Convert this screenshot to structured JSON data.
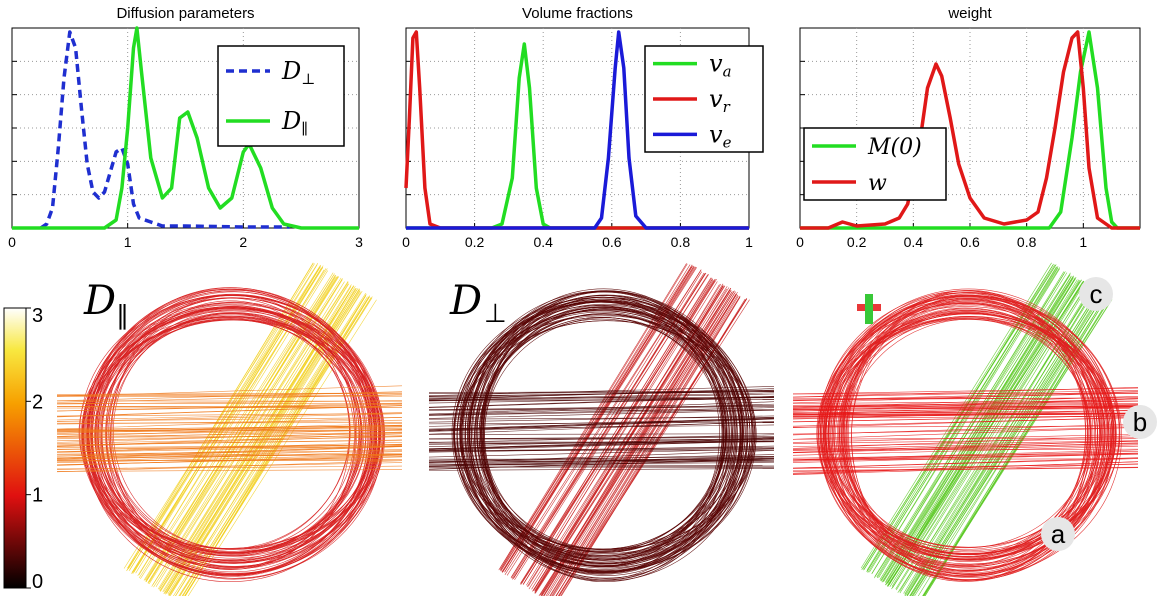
{
  "chart_data": [
    {
      "type": "line",
      "title": "Diffusion parameters",
      "xlim": [
        0,
        3
      ],
      "xticks": [
        0,
        1,
        2,
        3
      ],
      "ylim": [
        0,
        1
      ],
      "grid": true,
      "legend_placement": "top-right",
      "series": [
        {
          "name": "D",
          "name_sub": "⊥",
          "color": "#1f2fd0",
          "dash": true,
          "points": [
            [
              0.25,
              0
            ],
            [
              0.3,
              0.02
            ],
            [
              0.35,
              0.1
            ],
            [
              0.4,
              0.4
            ],
            [
              0.45,
              0.75
            ],
            [
              0.5,
              0.98
            ],
            [
              0.55,
              0.9
            ],
            [
              0.6,
              0.6
            ],
            [
              0.65,
              0.32
            ],
            [
              0.7,
              0.18
            ],
            [
              0.75,
              0.15
            ],
            [
              0.8,
              0.18
            ],
            [
              0.85,
              0.28
            ],
            [
              0.9,
              0.38
            ],
            [
              0.95,
              0.4
            ],
            [
              1.0,
              0.32
            ],
            [
              1.05,
              0.12
            ],
            [
              1.1,
              0.05
            ],
            [
              1.2,
              0.03
            ],
            [
              1.3,
              0.01
            ],
            [
              1.5,
              0.01
            ],
            [
              2.0,
              0.005
            ],
            [
              2.4,
              0.005
            ]
          ]
        },
        {
          "name": "D",
          "name_sub": "∥",
          "color": "#22dd22",
          "dash": false,
          "points": [
            [
              0,
              0
            ],
            [
              0.8,
              0
            ],
            [
              0.9,
              0.04
            ],
            [
              0.95,
              0.2
            ],
            [
              1.0,
              0.5
            ],
            [
              1.05,
              0.9
            ],
            [
              1.08,
              1.0
            ],
            [
              1.12,
              0.78
            ],
            [
              1.2,
              0.35
            ],
            [
              1.3,
              0.15
            ],
            [
              1.38,
              0.2
            ],
            [
              1.45,
              0.55
            ],
            [
              1.52,
              0.58
            ],
            [
              1.6,
              0.45
            ],
            [
              1.7,
              0.2
            ],
            [
              1.8,
              0.1
            ],
            [
              1.9,
              0.15
            ],
            [
              2.0,
              0.38
            ],
            [
              2.05,
              0.42
            ],
            [
              2.15,
              0.3
            ],
            [
              2.25,
              0.1
            ],
            [
              2.35,
              0.02
            ],
            [
              2.5,
              0
            ],
            [
              3.0,
              0
            ]
          ]
        }
      ]
    },
    {
      "type": "line",
      "title": "Volume fractions",
      "xlim": [
        0,
        1
      ],
      "xticks": [
        "0",
        "0.2",
        "0.4",
        "0.6",
        "0.8",
        "1"
      ],
      "ylim": [
        0,
        1
      ],
      "grid": true,
      "legend_placement": "top-right",
      "series": [
        {
          "name": "v",
          "name_sub": "a",
          "color": "#22dd22",
          "dash": false,
          "points": [
            [
              0,
              0
            ],
            [
              0.25,
              0
            ],
            [
              0.28,
              0.02
            ],
            [
              0.31,
              0.25
            ],
            [
              0.33,
              0.75
            ],
            [
              0.345,
              0.92
            ],
            [
              0.36,
              0.7
            ],
            [
              0.38,
              0.2
            ],
            [
              0.4,
              0.02
            ],
            [
              0.42,
              0
            ],
            [
              1.0,
              0
            ]
          ]
        },
        {
          "name": "v",
          "name_sub": "r",
          "color": "#e01818",
          "dash": false,
          "points": [
            [
              0,
              0.2
            ],
            [
              0.01,
              0.55
            ],
            [
              0.02,
              0.95
            ],
            [
              0.03,
              0.98
            ],
            [
              0.04,
              0.7
            ],
            [
              0.055,
              0.2
            ],
            [
              0.07,
              0.02
            ],
            [
              0.1,
              0
            ],
            [
              1.0,
              0
            ]
          ]
        },
        {
          "name": "v",
          "name_sub": "e",
          "color": "#1a1ad8",
          "dash": false,
          "points": [
            [
              0,
              0
            ],
            [
              0.55,
              0
            ],
            [
              0.57,
              0.05
            ],
            [
              0.59,
              0.35
            ],
            [
              0.61,
              0.8
            ],
            [
              0.62,
              0.98
            ],
            [
              0.635,
              0.8
            ],
            [
              0.65,
              0.35
            ],
            [
              0.67,
              0.06
            ],
            [
              0.7,
              0
            ],
            [
              1.0,
              0
            ]
          ]
        }
      ]
    },
    {
      "type": "line",
      "title": "weight",
      "xlim": [
        0,
        1.2
      ],
      "xticks": [
        "0",
        "0.2",
        "0.4",
        "0.6",
        "0.8",
        "1"
      ],
      "ylim": [
        0,
        1
      ],
      "grid": true,
      "legend_placement": "center-left",
      "series": [
        {
          "name": "M(0)",
          "color": "#22dd22",
          "dash": false,
          "points": [
            [
              0,
              0
            ],
            [
              0.88,
              0
            ],
            [
              0.92,
              0.08
            ],
            [
              0.96,
              0.45
            ],
            [
              0.99,
              0.78
            ],
            [
              1.02,
              0.98
            ],
            [
              1.05,
              0.7
            ],
            [
              1.08,
              0.2
            ],
            [
              1.1,
              0.03
            ],
            [
              1.12,
              0
            ],
            [
              1.2,
              0
            ]
          ]
        },
        {
          "name": "w",
          "color": "#e01818",
          "dash": false,
          "points": [
            [
              0,
              0
            ],
            [
              0.1,
              0
            ],
            [
              0.15,
              0.03
            ],
            [
              0.2,
              0.01
            ],
            [
              0.3,
              0.02
            ],
            [
              0.35,
              0.05
            ],
            [
              0.38,
              0.12
            ],
            [
              0.42,
              0.4
            ],
            [
              0.45,
              0.7
            ],
            [
              0.48,
              0.82
            ],
            [
              0.5,
              0.76
            ],
            [
              0.53,
              0.55
            ],
            [
              0.56,
              0.32
            ],
            [
              0.6,
              0.15
            ],
            [
              0.65,
              0.05
            ],
            [
              0.72,
              0.02
            ],
            [
              0.8,
              0.04
            ],
            [
              0.84,
              0.08
            ],
            [
              0.87,
              0.25
            ],
            [
              0.9,
              0.5
            ],
            [
              0.93,
              0.78
            ],
            [
              0.96,
              0.95
            ],
            [
              0.98,
              0.98
            ],
            [
              1.0,
              0.7
            ],
            [
              1.02,
              0.3
            ],
            [
              1.05,
              0.05
            ],
            [
              1.1,
              0
            ],
            [
              1.2,
              0
            ]
          ]
        }
      ]
    }
  ],
  "maps": {
    "panel1_label_main": "D",
    "panel1_label_sub": "∥",
    "panel2_label_main": "D",
    "panel2_label_sub": "⊥",
    "colorbar_ticks": [
      "3",
      "2",
      "1",
      "0"
    ],
    "annotations": [
      "c",
      "b",
      "a"
    ],
    "colors": {
      "ring1": "#d82020",
      "band1_horizontal": "#f07818",
      "band1_diagonal": "#f2d020",
      "ring2": "#5a0606",
      "band2_horizontal": "#4a0404",
      "band2_diagonal": "#c82020",
      "ring3": "#e02020",
      "band3_horizontal": "#e81818",
      "band3_diagonal": "#58c820",
      "plus_red": "#e83838",
      "plus_green": "#38c838"
    }
  }
}
